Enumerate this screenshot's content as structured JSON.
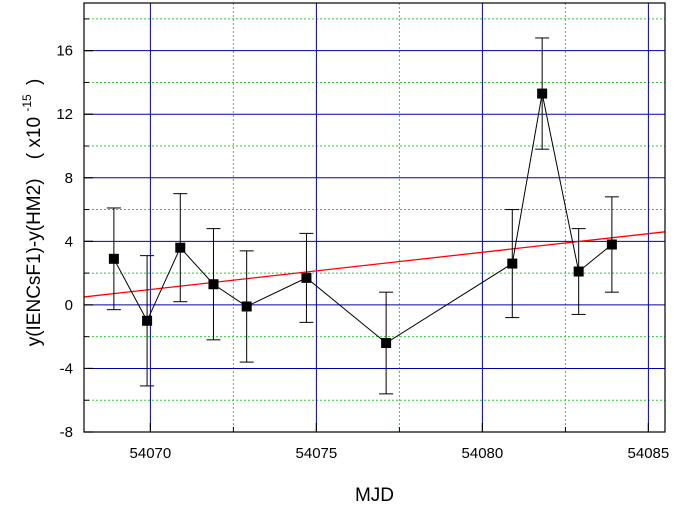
{
  "chart_data": {
    "type": "scatter",
    "title": "",
    "xlabel": "MJD",
    "ylabel": "y(IENCsF1)-y(HM2)",
    "ylabel_scale_base": "( x10",
    "ylabel_scale_exp": "-15",
    "ylabel_scale_close": ")",
    "xlim": [
      54068,
      54085.5
    ],
    "ylim": [
      -8,
      19
    ],
    "x_major_ticks": [
      54070,
      54075,
      54080,
      54085
    ],
    "x_tick_labels": [
      "54070",
      "54075",
      "54080",
      "54085"
    ],
    "x_minor_ticks": [
      54072.5,
      54077.5,
      54082.5
    ],
    "y_major_ticks": [
      -8,
      -4,
      0,
      4,
      8,
      12,
      16
    ],
    "y_tick_labels": [
      "-8",
      "-4",
      "0",
      "4",
      "8",
      "12",
      "16"
    ],
    "y_minor_ticks": [
      -6,
      -2,
      2,
      6,
      10,
      14,
      18
    ],
    "grid": true,
    "series": [
      {
        "style": "line+markers+errorbars",
        "x": [
          54068.9,
          54069.9,
          54070.9,
          54071.9,
          54072.9,
          54074.7,
          54077.1,
          54080.9,
          54081.8,
          54082.9,
          54083.9
        ],
        "y": [
          2.9,
          -1.0,
          3.6,
          1.3,
          -0.1,
          1.7,
          -2.4,
          2.6,
          13.3,
          2.1,
          3.8
        ],
        "yerr": [
          3.2,
          4.1,
          3.4,
          3.5,
          3.5,
          2.8,
          3.2,
          3.4,
          3.5,
          2.7,
          3.0
        ],
        "color": "#000000"
      },
      {
        "style": "fit-line",
        "x": [
          54068,
          54085.5
        ],
        "y": [
          0.5,
          4.6
        ],
        "color": "#ff0000"
      }
    ],
    "colors": {
      "major_grid": "#0000a8",
      "minor_grid": "#33cc33",
      "axis": "#000000",
      "fit": "#ff0000"
    }
  }
}
